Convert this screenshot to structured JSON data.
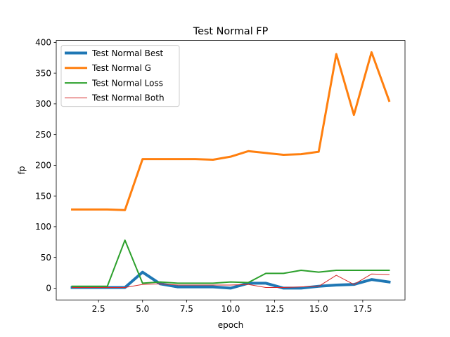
{
  "chart_data": {
    "type": "line",
    "title": "Test Normal FP",
    "xlabel": "epoch",
    "ylabel": "fp",
    "xlim": [
      0.1,
      19.9
    ],
    "ylim": [
      -19.2,
      403.2
    ],
    "xticks": [
      2.5,
      5.0,
      7.5,
      10.0,
      12.5,
      15.0,
      17.5
    ],
    "xtick_labels": [
      "2.5",
      "5.0",
      "7.5",
      "10.0",
      "12.5",
      "15.0",
      "17.5"
    ],
    "yticks": [
      0,
      50,
      100,
      150,
      200,
      250,
      300,
      350,
      400
    ],
    "ytick_labels": [
      "0",
      "50",
      "100",
      "150",
      "200",
      "250",
      "300",
      "350",
      "400"
    ],
    "grid": false,
    "legend_position": "upper-left",
    "x": [
      1,
      2,
      3,
      4,
      5,
      6,
      7,
      8,
      9,
      10,
      11,
      12,
      13,
      14,
      15,
      16,
      17,
      18,
      19
    ],
    "series": [
      {
        "name": "Test Normal Best",
        "color": "#1f77b4",
        "linewidth": 4,
        "values": [
          1,
          1,
          1,
          1,
          26,
          7,
          2,
          2,
          2,
          0,
          8,
          8,
          0,
          0,
          3,
          5,
          6,
          14,
          10
        ]
      },
      {
        "name": "Test Normal G",
        "color": "#ff7f0e",
        "linewidth": 3,
        "values": [
          128,
          128,
          128,
          127,
          210,
          210,
          210,
          210,
          209,
          214,
          223,
          220,
          217,
          218,
          222,
          381,
          282,
          384,
          305
        ]
      },
      {
        "name": "Test Normal Loss",
        "color": "#2ca02c",
        "linewidth": 2,
        "values": [
          3,
          3,
          3,
          78,
          8,
          10,
          8,
          8,
          8,
          10,
          9,
          24,
          24,
          29,
          26,
          29,
          29,
          29,
          29
        ]
      },
      {
        "name": "Test Normal Both",
        "color": "#d62728",
        "linewidth": 1,
        "values": [
          1,
          1,
          1,
          1,
          6,
          7,
          5,
          5,
          5,
          5,
          6,
          1,
          1,
          2,
          3,
          21,
          6,
          23,
          22
        ]
      }
    ]
  }
}
